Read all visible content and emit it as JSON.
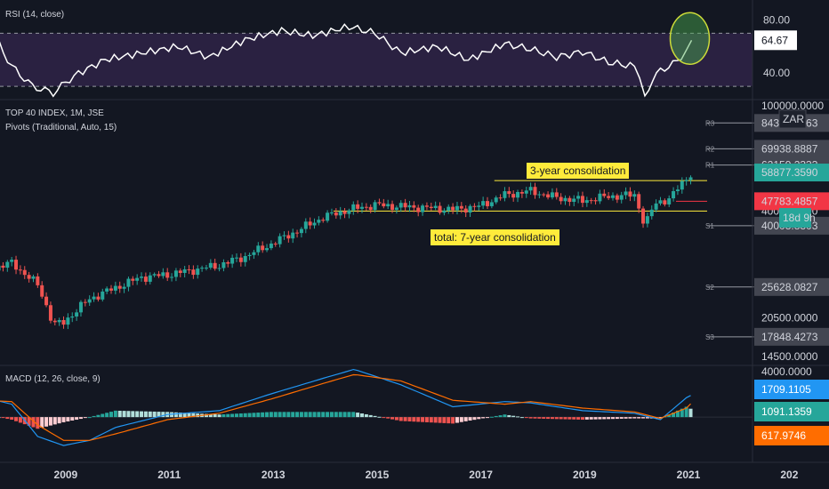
{
  "rsi": {
    "title": "RSI (14, close)",
    "axis_ticks": [
      "80.00",
      "40.00"
    ],
    "current": "64.67",
    "upper_band": 70,
    "lower_band": 30
  },
  "price": {
    "title_line1": "TOP 40 INDEX, 1M, JSE",
    "title_line2": "Pivots (Traditional, Auto, 15)",
    "currency": "ZAR",
    "countdown": "18d 9h",
    "axis_ticks": [
      "100000.0000",
      "84374.6363",
      "69938.8887",
      "62159.2333",
      "58877.3590",
      "40000.0000",
      "47783.4857",
      "40003.8303",
      "25628.0827",
      "20500.0000",
      "17848.4273",
      "14500.0000"
    ],
    "pivot_labels": [
      "R3",
      "R2",
      "R1",
      "S1",
      "S2",
      "S3"
    ],
    "callout_3yr": "3-year consolidation",
    "callout_7yr": "total: 7-year consolidation"
  },
  "macd": {
    "title": "MACD (12, 26, close, 9)",
    "axis_ticks": [
      "4000.0000",
      "1709.1105",
      "1091.1359",
      "617.9746"
    ]
  },
  "x_axis": {
    "labels": [
      "2009",
      "2011",
      "2013",
      "2015",
      "2017",
      "2019",
      "2021",
      "202"
    ]
  },
  "colors": {
    "background": "#131722",
    "bullish": "#26a69a",
    "bearish": "#ef5350",
    "rsi_fill": "#2a2141",
    "rsi_line": "#ffffff",
    "macd_line": "#2196f3",
    "signal_line": "#ff6d00",
    "callout": "#ffeb3b",
    "current_price_tag": "#26a69a",
    "pivot_tag": "#f23645",
    "macd_tag": "#2196f3",
    "histogram_tag": "#26a69a",
    "signal_tag": "#ff6d00",
    "highlight_circle": "#4caf50"
  },
  "chart_data": [
    {
      "type": "line",
      "title": "RSI (14, close)",
      "x": [
        2007.3,
        2007.6,
        2008.0,
        2008.4,
        2008.8,
        2009.2,
        2009.8,
        2010.5,
        2011.2,
        2011.8,
        2012.5,
        2013.2,
        2013.8,
        2014.5,
        2015.0,
        2015.5,
        2016.2,
        2016.8,
        2017.5,
        2018.0,
        2018.5,
        2019.0,
        2019.5,
        2020.0,
        2020.2,
        2020.5,
        2020.9,
        2021.1
      ],
      "values": [
        80,
        72,
        45,
        30,
        25,
        38,
        50,
        55,
        60,
        52,
        65,
        72,
        68,
        75,
        70,
        55,
        60,
        50,
        62,
        58,
        52,
        56,
        48,
        45,
        25,
        42,
        50,
        64.67
      ],
      "ylim": [
        20,
        95
      ]
    },
    {
      "type": "line",
      "title": "TOP 40 INDEX, 1M, JSE",
      "x": [
        2007.0,
        2007.5,
        2008.0,
        2008.5,
        2008.8,
        2009.0,
        2009.5,
        2010.0,
        2010.5,
        2011.0,
        2011.5,
        2012.0,
        2012.5,
        2013.0,
        2013.5,
        2014.0,
        2014.5,
        2015.0,
        2015.5,
        2016.0,
        2016.5,
        2017.0,
        2017.5,
        2018.0,
        2018.5,
        2019.0,
        2019.5,
        2020.0,
        2020.2,
        2020.4,
        2020.7,
        2021.0,
        2021.1
      ],
      "values": [
        27500,
        29000,
        30500,
        26000,
        19500,
        19800,
        23500,
        25500,
        27500,
        28000,
        29000,
        30000,
        32000,
        35000,
        38500,
        42500,
        45000,
        46500,
        46000,
        45500,
        45000,
        46000,
        50000,
        51500,
        49000,
        48000,
        49500,
        50000,
        40000,
        47000,
        49000,
        56500,
        58877.359
      ],
      "ylim": [
        14500,
        100000
      ],
      "pivots": {
        "R3": 84374.6363,
        "R2": 69938.8887,
        "R1": 62159.2333,
        "S1": 40003.8303,
        "S2": 25628.0827,
        "S3": 17848.4273
      },
      "consolidation_3yr": [
        47783.4857,
        55000
      ],
      "consolidation_7yr": [
        45000,
        55000
      ]
    },
    {
      "type": "line",
      "title": "MACD (12, 26, close, 9)",
      "x": [
        2007.0,
        2007.5,
        2008.0,
        2008.5,
        2009.0,
        2009.5,
        2010.0,
        2011.0,
        2012.0,
        2013.0,
        2014.0,
        2014.6,
        2015.5,
        2016.5,
        2017.5,
        2018.0,
        2019.0,
        2020.0,
        2020.5,
        2021.0,
        2021.1
      ],
      "series": [
        {
          "values": [
            1200,
            1500,
            1000,
            -1500,
            -2200,
            -1800,
            -800,
            200,
            500,
            1800,
            3000,
            3700,
            2500,
            800,
            1200,
            1100,
            500,
            300,
            -200,
            1500,
            1709.1105
          ]
        },
        {
          "values": [
            1100,
            1300,
            1200,
            -600,
            -1800,
            -1800,
            -1300,
            -200,
            300,
            1400,
            2600,
            3300,
            2800,
            1300,
            1000,
            1200,
            700,
            400,
            -100,
            700,
            1091.1359
          ]
        }
      ],
      "histogram_last": 617.9746,
      "ylim": [
        -3500,
        4000
      ]
    }
  ]
}
